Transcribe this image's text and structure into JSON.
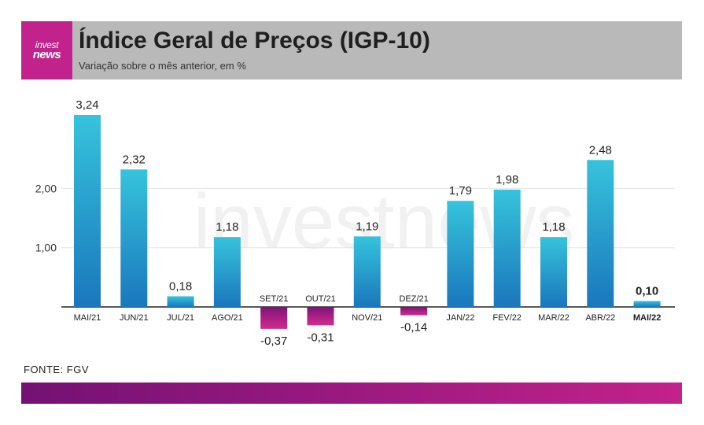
{
  "header": {
    "logo_line1": "invest",
    "logo_line2": "news",
    "title": "Índice Geral de Preços (IGP-10)",
    "subtitle": "Variação sobre o mês anterior, em %"
  },
  "watermark": "investnews",
  "source": "FONTE: FGV",
  "colors": {
    "positive_top": "#36c3dc",
    "positive_bottom": "#1a77bc",
    "negative_top": "#7d1478",
    "negative_bottom": "#d42a8f",
    "brand": "#c2228b",
    "header_bg": "#b9b9b9"
  },
  "chart_data": {
    "type": "bar",
    "categories": [
      "MAI/21",
      "JUN/21",
      "JUL/21",
      "AGO/21",
      "SET/21",
      "OUT/21",
      "NOV/21",
      "DEZ/21",
      "JAN/22",
      "FEV/22",
      "MAR/22",
      "ABR/22",
      "MAI/22"
    ],
    "values": [
      3.24,
      2.32,
      0.18,
      1.18,
      -0.37,
      -0.31,
      1.19,
      -0.14,
      1.79,
      1.98,
      1.18,
      2.48,
      0.1
    ],
    "value_labels": [
      "3,24",
      "2,32",
      "0,18",
      "1,18",
      "-0,37",
      "-0,31",
      "1,19",
      "-0,14",
      "1,79",
      "1,98",
      "1,18",
      "2,48",
      "0,10"
    ],
    "highlighted_category": "MAI/22",
    "y_ticks": [
      1.0,
      2.0
    ],
    "y_tick_labels": [
      "1,00",
      "2,00"
    ],
    "ylim": [
      -0.45,
      3.3
    ],
    "grid": true,
    "legend": "none",
    "title": "Índice Geral de Preços (IGP-10)",
    "subtitle": "Variação sobre o mês anterior, em %",
    "xlabel": "",
    "ylabel": ""
  }
}
